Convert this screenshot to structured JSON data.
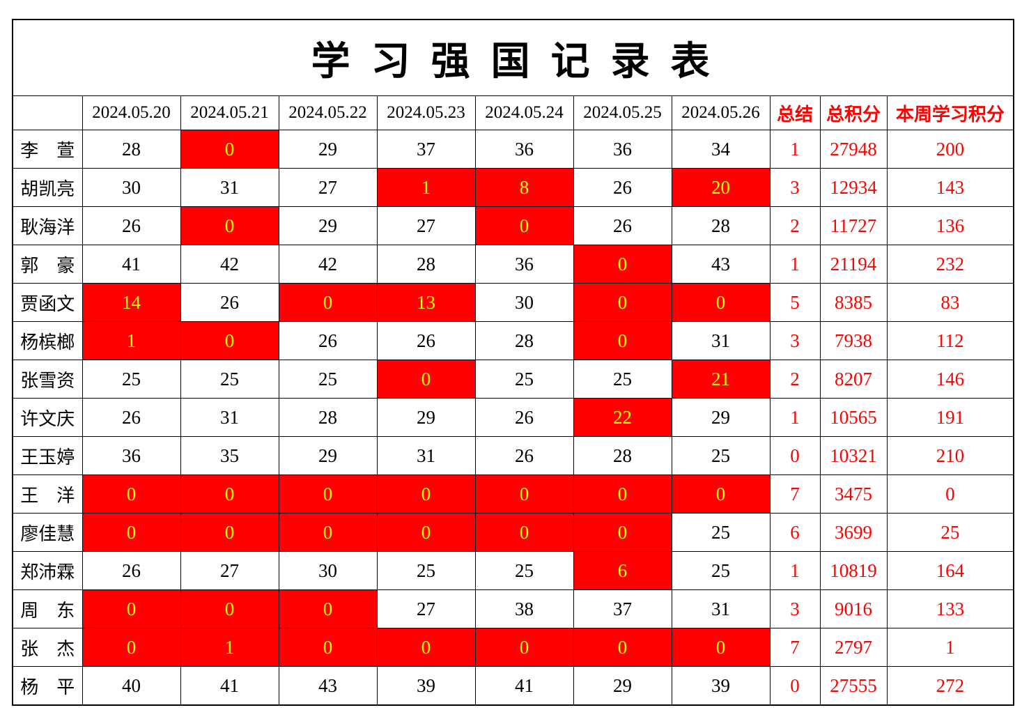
{
  "title": "学 习 强 国 记 录 表",
  "columns": [
    "",
    "2024.05.20",
    "2024.05.21",
    "2024.05.22",
    "2024.05.23",
    "2024.05.24",
    "2024.05.25",
    "2024.05.26",
    "总结",
    "总积分",
    "本周学习积分"
  ],
  "colors": {
    "alert_cell_bg": "#FF0000",
    "alert_cell_text": "#FFFF00",
    "accent_text": "#FF0000",
    "grid_line": "#000000"
  },
  "rows": [
    {
      "name": "李　萱",
      "days": [
        {
          "v": "28"
        },
        {
          "v": "0",
          "red": true,
          "small": true
        },
        {
          "v": "29"
        },
        {
          "v": "37"
        },
        {
          "v": "36"
        },
        {
          "v": "36"
        },
        {
          "v": "34"
        }
      ],
      "summary": "1",
      "total": "27948",
      "week": "200"
    },
    {
      "name": "胡凯亮",
      "days": [
        {
          "v": "30"
        },
        {
          "v": "31"
        },
        {
          "v": "27"
        },
        {
          "v": "1",
          "red": true
        },
        {
          "v": "8",
          "red": true
        },
        {
          "v": "26"
        },
        {
          "v": "20",
          "red": true
        }
      ],
      "summary": "3",
      "total": "12934",
      "week": "143"
    },
    {
      "name": "耿海洋",
      "days": [
        {
          "v": "26"
        },
        {
          "v": "0",
          "red": true
        },
        {
          "v": "29"
        },
        {
          "v": "27"
        },
        {
          "v": "0",
          "red": true
        },
        {
          "v": "26"
        },
        {
          "v": "28"
        }
      ],
      "summary": "2",
      "total": "11727",
      "week": "136"
    },
    {
      "name": "郭　豪",
      "days": [
        {
          "v": "41"
        },
        {
          "v": "42"
        },
        {
          "v": "42"
        },
        {
          "v": "28"
        },
        {
          "v": "36"
        },
        {
          "v": "0",
          "red": true
        },
        {
          "v": "43"
        }
      ],
      "summary": "1",
      "total": "21194",
      "week": "232"
    },
    {
      "name": "贾函文",
      "days": [
        {
          "v": "14",
          "red": true
        },
        {
          "v": "26"
        },
        {
          "v": "0",
          "red": true
        },
        {
          "v": "13",
          "red": true
        },
        {
          "v": "30"
        },
        {
          "v": "0",
          "red": true
        },
        {
          "v": "0",
          "red": true
        }
      ],
      "summary": "5",
      "total": "8385",
      "week": "83"
    },
    {
      "name": "杨槟榔",
      "days": [
        {
          "v": "1",
          "red": true
        },
        {
          "v": "0",
          "red": true
        },
        {
          "v": "26"
        },
        {
          "v": "26"
        },
        {
          "v": "28"
        },
        {
          "v": "0",
          "red": true
        },
        {
          "v": "31"
        }
      ],
      "summary": "3",
      "total": "7938",
      "week": "112"
    },
    {
      "name": "张雪资",
      "days": [
        {
          "v": "25"
        },
        {
          "v": "25"
        },
        {
          "v": "25"
        },
        {
          "v": "0",
          "red": true
        },
        {
          "v": "25"
        },
        {
          "v": "25"
        },
        {
          "v": "21",
          "red": true
        }
      ],
      "summary": "2",
      "total": "8207",
      "week": "146"
    },
    {
      "name": "许文庆",
      "days": [
        {
          "v": "26"
        },
        {
          "v": "31"
        },
        {
          "v": "28"
        },
        {
          "v": "29"
        },
        {
          "v": "26"
        },
        {
          "v": "22",
          "red": true
        },
        {
          "v": "29"
        }
      ],
      "summary": "1",
      "total": "10565",
      "week": "191"
    },
    {
      "name": "王玉婷",
      "days": [
        {
          "v": "36"
        },
        {
          "v": "35"
        },
        {
          "v": "29"
        },
        {
          "v": "31"
        },
        {
          "v": "26"
        },
        {
          "v": "28"
        },
        {
          "v": "25"
        }
      ],
      "summary": "0",
      "total": "10321",
      "week": "210"
    },
    {
      "name": "王　洋",
      "days": [
        {
          "v": "0",
          "red": true
        },
        {
          "v": "0",
          "red": true
        },
        {
          "v": "0",
          "red": true
        },
        {
          "v": "0",
          "red": true
        },
        {
          "v": "0",
          "red": true
        },
        {
          "v": "0",
          "red": true
        },
        {
          "v": "0",
          "red": true
        }
      ],
      "summary": "7",
      "total": "3475",
      "week": "0"
    },
    {
      "name": "廖佳慧",
      "days": [
        {
          "v": "0",
          "red": true
        },
        {
          "v": "0",
          "red": true
        },
        {
          "v": "0",
          "red": true
        },
        {
          "v": "0",
          "red": true
        },
        {
          "v": "0",
          "red": true
        },
        {
          "v": "0",
          "red": true
        },
        {
          "v": "25"
        }
      ],
      "summary": "6",
      "total": "3699",
      "week": "25"
    },
    {
      "name": "郑沛霖",
      "days": [
        {
          "v": "26"
        },
        {
          "v": "27"
        },
        {
          "v": "30"
        },
        {
          "v": "25"
        },
        {
          "v": "25"
        },
        {
          "v": "6",
          "red": true
        },
        {
          "v": "25",
          "small": true
        }
      ],
      "summary": "1",
      "total": "10819",
      "week": "164"
    },
    {
      "name": "周　东",
      "days": [
        {
          "v": "0",
          "red": true
        },
        {
          "v": "0",
          "red": true
        },
        {
          "v": "0",
          "red": true
        },
        {
          "v": "27"
        },
        {
          "v": "38"
        },
        {
          "v": "37"
        },
        {
          "v": "31"
        }
      ],
      "summary": "3",
      "total": "9016",
      "week": "133"
    },
    {
      "name": "张　杰",
      "days": [
        {
          "v": "0",
          "red": true
        },
        {
          "v": "1",
          "red": true
        },
        {
          "v": "0",
          "red": true
        },
        {
          "v": "0",
          "red": true
        },
        {
          "v": "0",
          "red": true
        },
        {
          "v": "0",
          "red": true
        },
        {
          "v": "0",
          "red": true
        }
      ],
      "summary": "7",
      "total": "2797",
      "week": "1"
    },
    {
      "name": "杨　平",
      "days": [
        {
          "v": "40"
        },
        {
          "v": "41"
        },
        {
          "v": "43"
        },
        {
          "v": "39"
        },
        {
          "v": "41"
        },
        {
          "v": "29"
        },
        {
          "v": "39"
        }
      ],
      "summary": "0",
      "total": "27555",
      "week": "272"
    }
  ]
}
